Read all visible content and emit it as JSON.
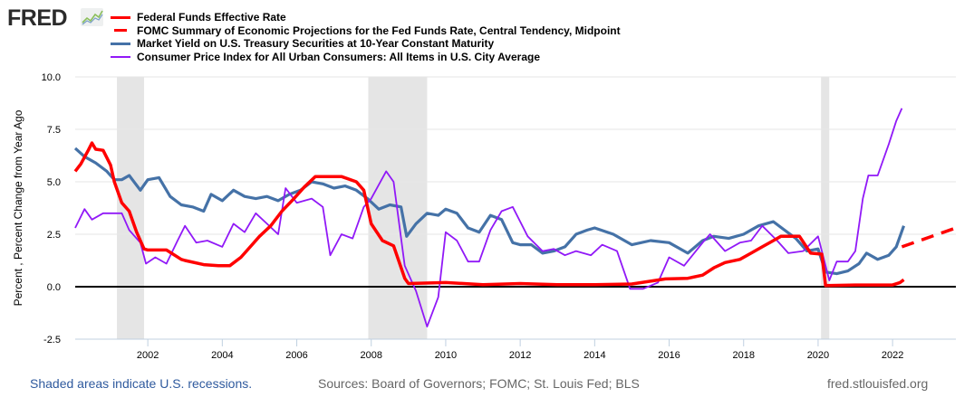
{
  "header": {
    "logo_text": "FRED",
    "logo_icon": "fred-line-chart-icon"
  },
  "footer": {
    "recession_note": "Shaded areas indicate U.S. recessions.",
    "sources": "Sources: Board of Governors; FOMC; St. Louis Fed; BLS",
    "site": "fred.stlouisfed.org"
  },
  "chart_data": {
    "type": "line",
    "title": "",
    "xlabel": "",
    "ylabel": "Percent , Percent Change from Year Ago",
    "xlim": [
      2000.05,
      2023.7
    ],
    "ylim": [
      -2.5,
      10.0
    ],
    "yticks": [
      "-2.5",
      "0.0",
      "2.5",
      "5.0",
      "7.5",
      "10.0"
    ],
    "ytick_values": [
      -2.5,
      0,
      2.5,
      5.0,
      7.5,
      10.0
    ],
    "xticks": [
      "2002",
      "2004",
      "2006",
      "2008",
      "2010",
      "2012",
      "2014",
      "2016",
      "2018",
      "2020",
      "2022"
    ],
    "xtick_values": [
      2002,
      2004,
      2006,
      2008,
      2010,
      2012,
      2014,
      2016,
      2018,
      2020,
      2022
    ],
    "grid": true,
    "legend_position": "top",
    "recessions": [
      [
        2001.17,
        2001.9
      ],
      [
        2007.92,
        2009.5
      ],
      [
        2020.08,
        2020.3
      ]
    ],
    "series": [
      {
        "name": "Federal Funds Effective Rate",
        "color": "#ff0000",
        "style": "solid",
        "x": [
          2000.05,
          2000.2,
          2000.4,
          2000.5,
          2000.6,
          2000.8,
          2001.0,
          2001.1,
          2001.3,
          2001.5,
          2001.7,
          2001.9,
          2002.0,
          2002.5,
          2002.9,
          2003.0,
          2003.5,
          2003.9,
          2004.2,
          2004.5,
          2004.8,
          2005.0,
          2005.3,
          2005.6,
          2005.9,
          2006.2,
          2006.5,
          2006.9,
          2007.2,
          2007.6,
          2007.8,
          2008.0,
          2008.3,
          2008.6,
          2008.9,
          2009.0,
          2010.0,
          2011.0,
          2012.0,
          2013.0,
          2014.0,
          2015.0,
          2015.9,
          2016.5,
          2016.9,
          2017.2,
          2017.5,
          2017.9,
          2018.2,
          2018.5,
          2018.8,
          2019.0,
          2019.5,
          2019.8,
          2020.1,
          2020.2,
          2021.0,
          2022.0,
          2022.2,
          2022.3
        ],
        "values": [
          5.5,
          5.85,
          6.5,
          6.85,
          6.55,
          6.5,
          5.8,
          5.0,
          4.0,
          3.6,
          2.6,
          1.8,
          1.75,
          1.75,
          1.3,
          1.25,
          1.05,
          1.0,
          1.0,
          1.4,
          2.0,
          2.4,
          2.9,
          3.6,
          4.15,
          4.75,
          5.25,
          5.25,
          5.25,
          5.0,
          4.6,
          3.0,
          2.2,
          1.95,
          0.4,
          0.15,
          0.2,
          0.1,
          0.15,
          0.1,
          0.1,
          0.13,
          0.37,
          0.4,
          0.55,
          0.9,
          1.15,
          1.3,
          1.6,
          1.9,
          2.2,
          2.4,
          2.4,
          1.6,
          1.55,
          0.05,
          0.08,
          0.08,
          0.2,
          0.33
        ]
      },
      {
        "name": "FOMC Summary of Economic Projections for the Fed Funds Rate, Central Tendency, Midpoint",
        "color": "#ff0000",
        "style": "dashed",
        "x": [
          2022.25,
          2023.7
        ],
        "values": [
          1.9,
          2.8
        ]
      },
      {
        "name": "Market Yield on U.S. Treasury Securities at 10-Year Constant Maturity",
        "color": "#4572a7",
        "style": "solid",
        "x": [
          2000.05,
          2000.3,
          2000.6,
          2000.9,
          2001.1,
          2001.3,
          2001.5,
          2001.8,
          2002.0,
          2002.3,
          2002.6,
          2002.9,
          2003.2,
          2003.5,
          2003.7,
          2004.0,
          2004.3,
          2004.6,
          2004.9,
          2005.2,
          2005.5,
          2005.8,
          2006.1,
          2006.4,
          2006.7,
          2007.0,
          2007.3,
          2007.6,
          2007.9,
          2008.2,
          2008.5,
          2008.8,
          2008.95,
          2009.2,
          2009.5,
          2009.8,
          2010.0,
          2010.3,
          2010.6,
          2010.9,
          2011.2,
          2011.5,
          2011.8,
          2012.0,
          2012.3,
          2012.6,
          2012.9,
          2013.2,
          2013.5,
          2013.8,
          2014.0,
          2014.5,
          2015.0,
          2015.5,
          2016.0,
          2016.5,
          2016.9,
          2017.2,
          2017.6,
          2018.0,
          2018.4,
          2018.8,
          2019.1,
          2019.4,
          2019.7,
          2020.0,
          2020.2,
          2020.5,
          2020.8,
          2021.1,
          2021.3,
          2021.6,
          2021.9,
          2022.1,
          2022.3
        ],
        "values": [
          6.6,
          6.2,
          5.9,
          5.5,
          5.1,
          5.1,
          5.3,
          4.6,
          5.1,
          5.2,
          4.3,
          3.9,
          3.8,
          3.6,
          4.4,
          4.1,
          4.6,
          4.3,
          4.2,
          4.3,
          4.1,
          4.4,
          4.6,
          5.0,
          4.9,
          4.7,
          4.8,
          4.6,
          4.2,
          3.7,
          3.9,
          3.8,
          2.4,
          3.0,
          3.5,
          3.4,
          3.7,
          3.5,
          2.8,
          2.6,
          3.4,
          3.2,
          2.1,
          2.0,
          2.0,
          1.6,
          1.7,
          1.9,
          2.5,
          2.7,
          2.8,
          2.5,
          2.0,
          2.2,
          2.1,
          1.6,
          2.2,
          2.4,
          2.3,
          2.5,
          2.9,
          3.1,
          2.7,
          2.3,
          1.7,
          1.8,
          0.7,
          0.62,
          0.75,
          1.1,
          1.6,
          1.3,
          1.5,
          1.9,
          2.9
        ]
      },
      {
        "name": "Consumer Price Index for All Urban Consumers: All Items in U.S. City Average",
        "color": "#9119f7",
        "style": "solid",
        "x": [
          2000.05,
          2000.3,
          2000.5,
          2000.8,
          2001.0,
          2001.3,
          2001.5,
          2001.8,
          2001.95,
          2002.2,
          2002.5,
          2002.8,
          2003.0,
          2003.3,
          2003.6,
          2004.0,
          2004.3,
          2004.6,
          2004.9,
          2005.2,
          2005.5,
          2005.7,
          2006.0,
          2006.4,
          2006.7,
          2006.9,
          2007.2,
          2007.5,
          2007.8,
          2008.0,
          2008.4,
          2008.6,
          2008.9,
          2009.2,
          2009.5,
          2009.8,
          2010.0,
          2010.3,
          2010.6,
          2010.9,
          2011.2,
          2011.5,
          2011.8,
          2012.2,
          2012.6,
          2012.9,
          2013.2,
          2013.5,
          2013.9,
          2014.2,
          2014.6,
          2014.95,
          2015.3,
          2015.7,
          2016.0,
          2016.4,
          2016.9,
          2017.1,
          2017.5,
          2017.9,
          2018.2,
          2018.5,
          2018.9,
          2019.2,
          2019.6,
          2020.0,
          2020.3,
          2020.5,
          2020.8,
          2021.0,
          2021.2,
          2021.35,
          2021.6,
          2021.9,
          2022.1,
          2022.25
        ],
        "values": [
          2.8,
          3.7,
          3.2,
          3.5,
          3.5,
          3.5,
          2.7,
          2.1,
          1.1,
          1.4,
          1.1,
          2.2,
          2.9,
          2.1,
          2.2,
          1.9,
          3.0,
          2.6,
          3.5,
          3.0,
          2.5,
          4.7,
          4.0,
          4.2,
          3.8,
          1.5,
          2.5,
          2.3,
          3.8,
          4.2,
          5.5,
          5.0,
          1.0,
          -0.2,
          -1.9,
          -0.5,
          2.6,
          2.2,
          1.2,
          1.2,
          2.7,
          3.6,
          3.8,
          2.4,
          1.7,
          1.8,
          1.5,
          1.7,
          1.5,
          2.0,
          1.7,
          -0.1,
          -0.1,
          0.2,
          1.4,
          1.0,
          2.1,
          2.5,
          1.7,
          2.1,
          2.2,
          2.9,
          2.2,
          1.6,
          1.7,
          2.4,
          0.3,
          1.2,
          1.2,
          1.7,
          4.2,
          5.3,
          5.3,
          6.8,
          7.9,
          8.5
        ]
      }
    ]
  }
}
